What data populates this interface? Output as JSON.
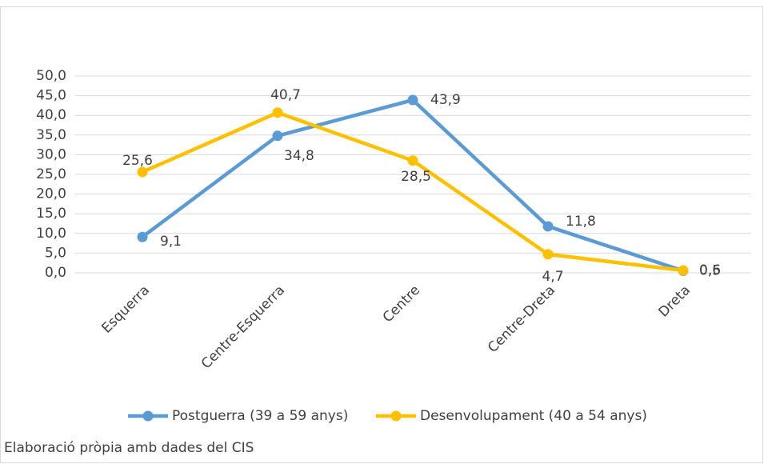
{
  "chart_data": {
    "type": "line",
    "categories": [
      "Esquerra",
      "Centre-Esquerra",
      "Centre",
      "Centre-Dreta",
      "Dreta"
    ],
    "series": [
      {
        "name": "Postguerra (39 a 59 anys)",
        "color": "#5b9bd5",
        "values": [
          9.1,
          34.8,
          43.9,
          11.8,
          0.5
        ],
        "value_labels": [
          "9,1",
          "34,8",
          "43,9",
          "11,8",
          "0,5"
        ]
      },
      {
        "name": "Desenvolupament (40 a 54 anys)",
        "color": "#ffc000",
        "values": [
          25.6,
          40.7,
          28.5,
          4.7,
          0.6
        ],
        "value_labels": [
          "25,6",
          "40,7",
          "28,5",
          "4,7",
          "0,6"
        ]
      }
    ],
    "ylim": [
      0,
      50
    ],
    "yticks": [
      {
        "value": 0,
        "label": "0,0"
      },
      {
        "value": 5,
        "label": "5,0"
      },
      {
        "value": 10,
        "label": "10,0"
      },
      {
        "value": 15,
        "label": "15,0"
      },
      {
        "value": 20,
        "label": "20,0"
      },
      {
        "value": 25,
        "label": "25,0"
      },
      {
        "value": 30,
        "label": "30,0"
      },
      {
        "value": 35,
        "label": "35,0"
      },
      {
        "value": 40,
        "label": "40,0"
      },
      {
        "value": 45,
        "label": "45,0"
      },
      {
        "value": 50,
        "label": "50,0"
      }
    ],
    "grid": true,
    "legend": "bottom",
    "source": "Elaboració pròpia amb dades del CIS"
  }
}
